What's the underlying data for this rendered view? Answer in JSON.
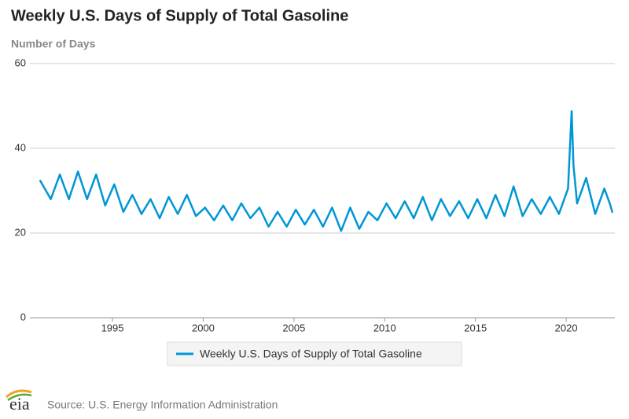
{
  "chart_data": {
    "type": "line",
    "title": "Weekly U.S. Days of Supply of Total Gasoline",
    "subtitle": "Number of Days",
    "source": "Source: U.S. Energy Information Administration",
    "logo": "eia",
    "x": [
      1991.0,
      1991.6,
      1992.1,
      1992.6,
      1993.1,
      1993.6,
      1994.1,
      1994.6,
      1995.1,
      1995.6,
      1996.1,
      1996.6,
      1997.1,
      1997.6,
      1998.1,
      1998.6,
      1999.1,
      1999.6,
      2000.1,
      2000.6,
      2001.1,
      2001.6,
      2002.1,
      2002.6,
      2003.1,
      2003.6,
      2004.1,
      2004.6,
      2005.1,
      2005.6,
      2006.1,
      2006.6,
      2007.1,
      2007.6,
      2008.1,
      2008.6,
      2009.1,
      2009.6,
      2010.1,
      2010.6,
      2011.1,
      2011.6,
      2012.1,
      2012.6,
      2013.1,
      2013.6,
      2014.1,
      2014.6,
      2015.1,
      2015.6,
      2016.1,
      2016.6,
      2017.1,
      2017.6,
      2018.1,
      2018.6,
      2019.1,
      2019.6,
      2020.1,
      2020.3,
      2020.4,
      2020.6,
      2021.1,
      2021.6,
      2022.1,
      2022.4,
      2022.55
    ],
    "series": [
      {
        "name": "Weekly U.S. Days of Supply of Total Gasoline",
        "color": "#0096d6",
        "values": [
          32.5,
          28,
          33.8,
          28,
          34.5,
          28,
          33.8,
          26.5,
          31.5,
          25,
          29,
          24.5,
          28,
          23.5,
          28.5,
          24.5,
          29,
          24,
          26,
          23,
          26.5,
          23,
          27,
          23.5,
          26,
          21.5,
          25,
          21.5,
          25.5,
          22,
          25.5,
          21.5,
          26,
          20.5,
          26,
          21,
          25,
          23,
          27,
          23.5,
          27.5,
          23.5,
          28.5,
          23,
          28,
          24,
          27.5,
          23.5,
          28,
          23.5,
          29,
          24,
          31,
          24,
          28,
          24.5,
          28.5,
          24.5,
          30.5,
          48.8,
          36,
          27,
          33,
          24.5,
          30.5,
          27,
          24.8
        ]
      }
    ],
    "xlim": [
      1990.45,
      2022.68
    ],
    "xticks": [
      1995,
      2000,
      2005,
      2010,
      2015,
      2020
    ],
    "ylim": [
      0,
      60
    ],
    "yticks": [
      0,
      20,
      40,
      60
    ],
    "grid": true,
    "legend": "bottom"
  }
}
